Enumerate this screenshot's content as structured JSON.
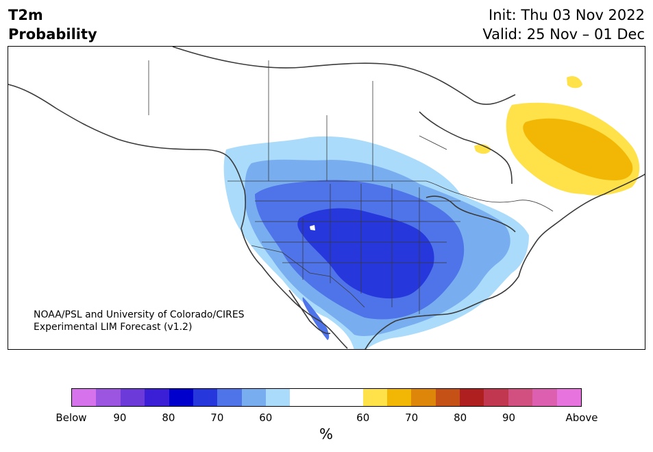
{
  "header": {
    "title_line1": "T2m",
    "title_line2": "Probability",
    "init": "Init: Thu 03 Nov 2022",
    "valid": "Valid: 25 Nov – 01 Dec"
  },
  "map": {
    "region": "North America",
    "credit_line1": "NOAA/PSL and University of Colorado/CIRES",
    "credit_line2": "Experimental LIM Forecast (v1.2)"
  },
  "colorbar": {
    "unit": "%",
    "segments": [
      {
        "color": "#d672ec"
      },
      {
        "color": "#9b55e0"
      },
      {
        "color": "#6b3ad8"
      },
      {
        "color": "#3a1fd6"
      },
      {
        "color": "#0000cd"
      },
      {
        "color": "#2637db"
      },
      {
        "color": "#4f73e8"
      },
      {
        "color": "#78aef0"
      },
      {
        "color": "#aadbfb"
      },
      {
        "color": "#ffffff",
        "wide": true
      },
      {
        "color": "#ffe14a"
      },
      {
        "color": "#f2b705"
      },
      {
        "color": "#de860a"
      },
      {
        "color": "#c65116"
      },
      {
        "color": "#b01f1f"
      },
      {
        "color": "#c23750"
      },
      {
        "color": "#d1507f"
      },
      {
        "color": "#dc5fb0"
      },
      {
        "color": "#e673de"
      }
    ],
    "ticks": [
      "Below",
      "90",
      "80",
      "70",
      "60",
      "60",
      "70",
      "80",
      "90",
      "Above"
    ]
  }
}
